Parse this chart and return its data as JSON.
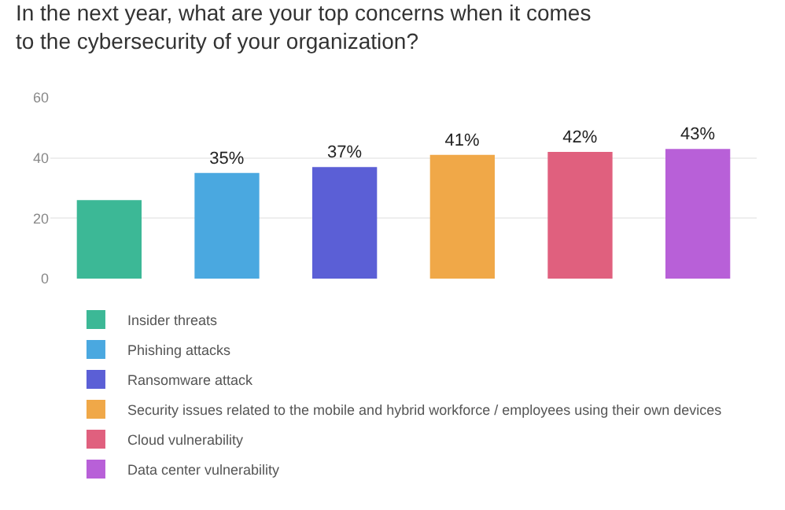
{
  "chart_data": {
    "type": "bar",
    "title": "In the next year, what are your top concerns when it comes\nto the cybersecurity of your organization?",
    "categories": [
      null,
      null,
      null,
      null,
      null,
      null
    ],
    "series": [
      {
        "name": "Insider threats",
        "color": "#3cb896",
        "values": [
          26,
          null,
          null,
          null,
          null,
          null
        ],
        "value_labels": [
          null,
          null,
          null,
          null,
          null,
          null
        ]
      },
      {
        "name": "Phishing attacks",
        "color": "#4aa8e0",
        "values": [
          null,
          35,
          null,
          null,
          null,
          null
        ],
        "value_labels": [
          null,
          "35%",
          null,
          null,
          null,
          null
        ]
      },
      {
        "name": "Ransomware attack",
        "color": "#5b5fd6",
        "values": [
          null,
          null,
          37,
          null,
          null,
          null
        ],
        "value_labels": [
          null,
          null,
          "37%",
          null,
          null,
          null
        ]
      },
      {
        "name": "Security issues related to the mobile and hybrid workforce / employees using their own devices",
        "color": "#f0a848",
        "values": [
          null,
          null,
          null,
          41,
          null,
          null
        ],
        "value_labels": [
          null,
          null,
          null,
          "41%",
          null,
          null
        ]
      },
      {
        "name": "Cloud vulnerability",
        "color": "#e0607e",
        "values": [
          null,
          null,
          null,
          null,
          42,
          null
        ],
        "value_labels": [
          null,
          null,
          null,
          null,
          "42%",
          null
        ]
      },
      {
        "name": "Data center vulnerability",
        "color": "#b860d8",
        "values": [
          null,
          null,
          null,
          null,
          null,
          43
        ],
        "value_labels": [
          null,
          null,
          null,
          null,
          null,
          "43%"
        ]
      }
    ],
    "ylim": [
      0,
      60
    ],
    "yticks": [
      0,
      20,
      40,
      60
    ],
    "grid": "y",
    "legend": "bottom"
  }
}
